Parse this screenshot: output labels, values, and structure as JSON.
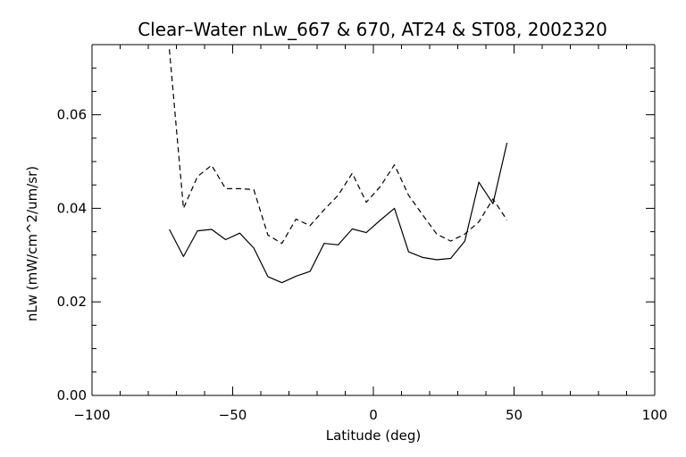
{
  "chart_data": {
    "type": "line",
    "title": "Clear–Water nLw_667 & 670, AT24 & ST08, 2002320",
    "xlabel": "Latitude (deg)",
    "ylabel": "nLw (mW/cm^2/um/sr)",
    "xlim": [
      -100,
      100
    ],
    "ylim": [
      0.0,
      0.075
    ],
    "xticks": [
      -100,
      -50,
      0,
      50,
      100
    ],
    "xtick_labels": [
      "−100",
      "−50",
      "0",
      "50",
      "100"
    ],
    "yticks": [
      0.0,
      0.02,
      0.04,
      0.06
    ],
    "ytick_labels": [
      "0.00",
      "0.02",
      "0.04",
      "0.06"
    ],
    "grid": false,
    "series": [
      {
        "style": "solid",
        "x": [
          -72.5,
          -67.5,
          -62.5,
          -57.5,
          -52.5,
          -47.5,
          -42.5,
          -37.5,
          -32.5,
          -27.5,
          -22.5,
          -17.5,
          -12.5,
          -7.5,
          -2.5,
          2.5,
          7.5,
          12.5,
          17.5,
          22.5,
          27.5,
          32.5,
          37.5,
          42.5,
          47.5
        ],
        "y": [
          0.0355,
          0.0297,
          0.0352,
          0.0355,
          0.0333,
          0.0347,
          0.0315,
          0.0254,
          0.0241,
          0.0255,
          0.0265,
          0.0325,
          0.0322,
          0.0356,
          0.0348,
          0.0375,
          0.04,
          0.0307,
          0.0295,
          0.029,
          0.0293,
          0.033,
          0.0456,
          0.041,
          0.054
        ]
      },
      {
        "style": "dashed",
        "x": [
          -72.5,
          -67.5,
          -62.5,
          -57.5,
          -52.5,
          -47.5,
          -42.5,
          -37.5,
          -32.5,
          -27.5,
          -22.5,
          -17.5,
          -12.5,
          -7.5,
          -2.5,
          2.5,
          7.5,
          12.5,
          17.5,
          22.5,
          27.5,
          32.5,
          37.5,
          42.5,
          47.5
        ],
        "y": [
          0.074,
          0.04,
          0.0468,
          0.0492,
          0.0442,
          0.0442,
          0.044,
          0.0343,
          0.0325,
          0.0377,
          0.0363,
          0.0397,
          0.0428,
          0.0475,
          0.0413,
          0.0447,
          0.0493,
          0.0428,
          0.0386,
          0.0345,
          0.033,
          0.0345,
          0.0371,
          0.042,
          0.0375
        ]
      }
    ]
  }
}
